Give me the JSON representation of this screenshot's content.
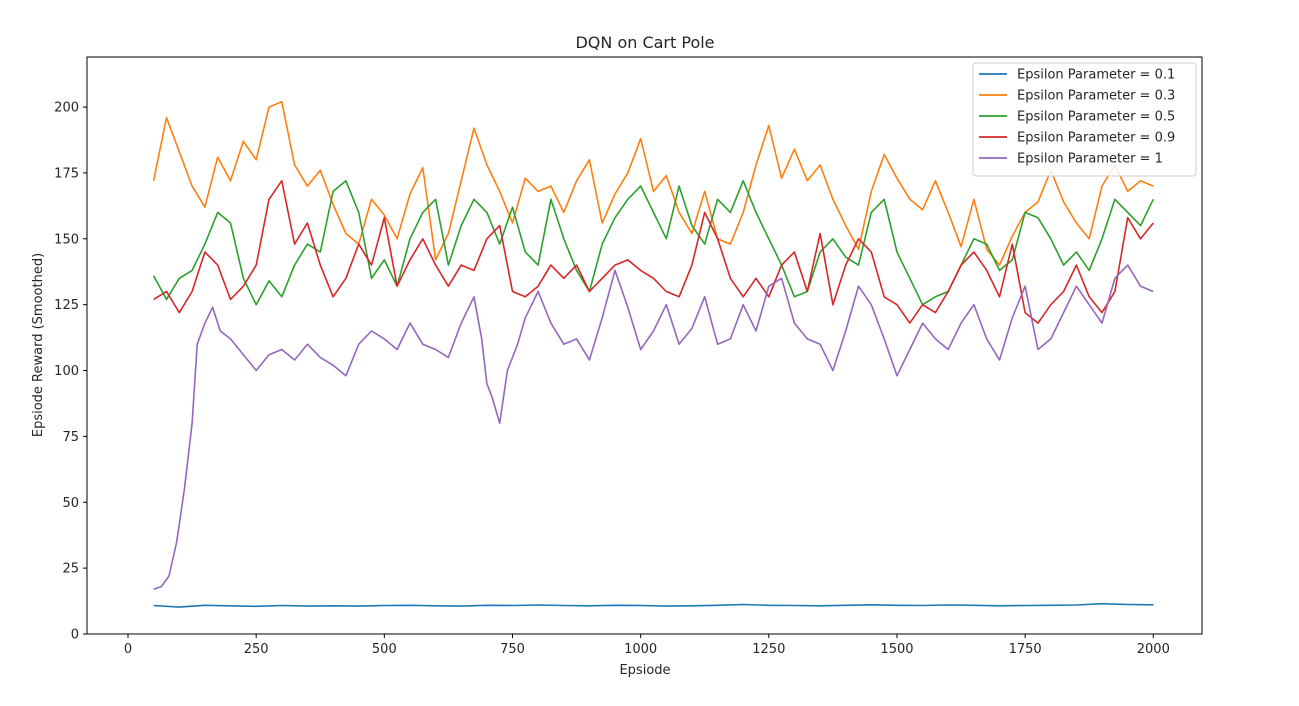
{
  "chart_data": {
    "type": "line",
    "title": "DQN on Cart Pole",
    "xlabel": "Epsiode",
    "ylabel": "Epsiode Reward (Smoothed)",
    "xlim": [
      -80,
      2095
    ],
    "ylim": [
      0,
      219
    ],
    "xticks": [
      0,
      250,
      500,
      750,
      1000,
      1250,
      1500,
      1750,
      2000
    ],
    "yticks": [
      0,
      25,
      50,
      75,
      100,
      125,
      150,
      175,
      200
    ],
    "grid": false,
    "legend_position": "top-right",
    "series": [
      {
        "name": "Epsilon Parameter = 0.1",
        "color": "#1f77b4",
        "x": [
          50,
          100,
          150,
          200,
          250,
          300,
          350,
          400,
          450,
          500,
          550,
          600,
          650,
          700,
          750,
          800,
          850,
          900,
          950,
          1000,
          1050,
          1100,
          1150,
          1200,
          1250,
          1300,
          1350,
          1400,
          1450,
          1500,
          1550,
          1600,
          1650,
          1700,
          1750,
          1800,
          1850,
          1900,
          1950,
          2000
        ],
        "y": [
          10.8,
          10.2,
          10.9,
          10.7,
          10.5,
          10.8,
          10.6,
          10.7,
          10.6,
          10.8,
          10.9,
          10.7,
          10.6,
          10.9,
          10.8,
          11.0,
          10.8,
          10.7,
          10.9,
          10.8,
          10.6,
          10.7,
          10.9,
          11.2,
          10.9,
          10.8,
          10.7,
          10.9,
          11.1,
          10.9,
          10.8,
          11.0,
          10.9,
          10.7,
          10.8,
          10.9,
          11.0,
          11.5,
          11.2,
          11.1
        ]
      },
      {
        "name": "Epsilon Parameter = 0.3",
        "color": "#ff7f0e",
        "x": [
          50,
          75,
          100,
          125,
          150,
          175,
          200,
          225,
          250,
          275,
          300,
          325,
          350,
          375,
          400,
          425,
          450,
          475,
          500,
          525,
          550,
          575,
          600,
          625,
          650,
          675,
          700,
          725,
          750,
          775,
          800,
          825,
          850,
          875,
          900,
          925,
          950,
          975,
          1000,
          1025,
          1050,
          1075,
          1100,
          1125,
          1150,
          1175,
          1200,
          1225,
          1250,
          1275,
          1300,
          1325,
          1350,
          1375,
          1400,
          1425,
          1450,
          1475,
          1500,
          1525,
          1550,
          1575,
          1600,
          1625,
          1650,
          1675,
          1700,
          1725,
          1750,
          1775,
          1800,
          1825,
          1850,
          1875,
          1900,
          1925,
          1950,
          1975,
          2000
        ],
        "y": [
          172,
          196,
          183,
          170,
          162,
          181,
          172,
          187,
          180,
          200,
          202,
          178,
          170,
          176,
          163,
          152,
          148,
          165,
          159,
          150,
          167,
          177,
          142,
          152,
          172,
          192,
          178,
          168,
          156,
          173,
          168,
          170,
          160,
          172,
          180,
          156,
          167,
          175,
          188,
          168,
          174,
          160,
          152,
          168,
          150,
          148,
          160,
          178,
          193,
          173,
          184,
          172,
          178,
          165,
          155,
          146,
          168,
          182,
          173,
          165,
          161,
          172,
          160,
          147,
          165,
          146,
          140,
          151,
          160,
          164,
          176,
          164,
          156,
          150,
          170,
          178,
          168,
          172,
          170
        ]
      },
      {
        "name": "Epsilon Parameter = 0.5",
        "color": "#2ca02c",
        "x": [
          50,
          75,
          100,
          125,
          150,
          175,
          200,
          225,
          250,
          275,
          300,
          325,
          350,
          375,
          400,
          425,
          450,
          475,
          500,
          525,
          550,
          575,
          600,
          625,
          650,
          675,
          700,
          725,
          750,
          775,
          800,
          825,
          850,
          875,
          900,
          925,
          950,
          975,
          1000,
          1025,
          1050,
          1075,
          1100,
          1125,
          1150,
          1175,
          1200,
          1225,
          1250,
          1275,
          1300,
          1325,
          1350,
          1375,
          1400,
          1425,
          1450,
          1475,
          1500,
          1525,
          1550,
          1575,
          1600,
          1625,
          1650,
          1675,
          1700,
          1725,
          1750,
          1775,
          1800,
          1825,
          1850,
          1875,
          1900,
          1925,
          1950,
          1975,
          2000
        ],
        "y": [
          136,
          127,
          135,
          138,
          148,
          160,
          156,
          135,
          125,
          134,
          128,
          140,
          148,
          145,
          168,
          172,
          160,
          135,
          142,
          132,
          150,
          160,
          165,
          140,
          155,
          165,
          160,
          148,
          162,
          145,
          140,
          165,
          150,
          138,
          130,
          148,
          158,
          165,
          170,
          160,
          150,
          170,
          155,
          148,
          165,
          160,
          172,
          160,
          150,
          140,
          128,
          130,
          145,
          150,
          143,
          140,
          160,
          165,
          145,
          135,
          125,
          128,
          130,
          140,
          150,
          148,
          138,
          142,
          160,
          158,
          150,
          140,
          145,
          138,
          150,
          165,
          160,
          155,
          165
        ]
      },
      {
        "name": "Epsilon Parameter = 0.9",
        "color": "#d62728",
        "x": [
          50,
          75,
          100,
          125,
          150,
          175,
          200,
          225,
          250,
          275,
          300,
          325,
          350,
          375,
          400,
          425,
          450,
          475,
          500,
          525,
          550,
          575,
          600,
          625,
          650,
          675,
          700,
          725,
          750,
          775,
          800,
          825,
          850,
          875,
          900,
          925,
          950,
          975,
          1000,
          1025,
          1050,
          1075,
          1100,
          1125,
          1150,
          1175,
          1200,
          1225,
          1250,
          1275,
          1300,
          1325,
          1350,
          1375,
          1400,
          1425,
          1450,
          1475,
          1500,
          1525,
          1550,
          1575,
          1600,
          1625,
          1650,
          1675,
          1700,
          1725,
          1750,
          1775,
          1800,
          1825,
          1850,
          1875,
          1900,
          1925,
          1950,
          1975,
          2000
        ],
        "y": [
          127,
          130,
          122,
          130,
          145,
          140,
          127,
          132,
          140,
          165,
          172,
          148,
          156,
          140,
          128,
          135,
          148,
          140,
          158,
          132,
          142,
          150,
          140,
          132,
          140,
          138,
          150,
          155,
          130,
          128,
          132,
          140,
          135,
          140,
          130,
          135,
          140,
          142,
          138,
          135,
          130,
          128,
          140,
          160,
          150,
          135,
          128,
          135,
          128,
          140,
          145,
          130,
          152,
          125,
          140,
          150,
          145,
          128,
          125,
          118,
          125,
          122,
          130,
          140,
          145,
          138,
          128,
          148,
          122,
          118,
          125,
          130,
          140,
          128,
          122,
          130,
          158,
          150,
          156
        ]
      },
      {
        "name": "Epsilon Parameter = 1",
        "color": "#9467bd",
        "x": [
          50,
          65,
          80,
          95,
          110,
          125,
          135,
          150,
          165,
          180,
          200,
          225,
          250,
          275,
          300,
          325,
          350,
          375,
          400,
          425,
          450,
          475,
          500,
          525,
          550,
          575,
          600,
          625,
          650,
          675,
          690,
          700,
          710,
          725,
          740,
          760,
          775,
          800,
          825,
          850,
          875,
          900,
          925,
          950,
          975,
          1000,
          1025,
          1050,
          1075,
          1100,
          1125,
          1150,
          1175,
          1200,
          1225,
          1250,
          1275,
          1300,
          1325,
          1350,
          1375,
          1400,
          1425,
          1450,
          1475,
          1500,
          1525,
          1550,
          1575,
          1600,
          1625,
          1650,
          1675,
          1700,
          1725,
          1750,
          1775,
          1800,
          1825,
          1850,
          1875,
          1900,
          1925,
          1950,
          1975,
          2000
        ],
        "y": [
          17,
          18,
          22,
          35,
          55,
          80,
          110,
          118,
          124,
          115,
          112,
          106,
          100,
          106,
          108,
          104,
          110,
          105,
          102,
          98,
          110,
          115,
          112,
          108,
          118,
          110,
          108,
          105,
          118,
          128,
          112,
          95,
          90,
          80,
          100,
          110,
          120,
          130,
          118,
          110,
          112,
          104,
          120,
          138,
          124,
          108,
          115,
          125,
          110,
          116,
          128,
          110,
          112,
          125,
          115,
          132,
          135,
          118,
          112,
          110,
          100,
          115,
          132,
          125,
          112,
          98,
          108,
          118,
          112,
          108,
          118,
          125,
          112,
          104,
          120,
          132,
          108,
          112,
          122,
          132,
          125,
          118,
          135,
          140,
          132,
          130
        ]
      }
    ]
  }
}
